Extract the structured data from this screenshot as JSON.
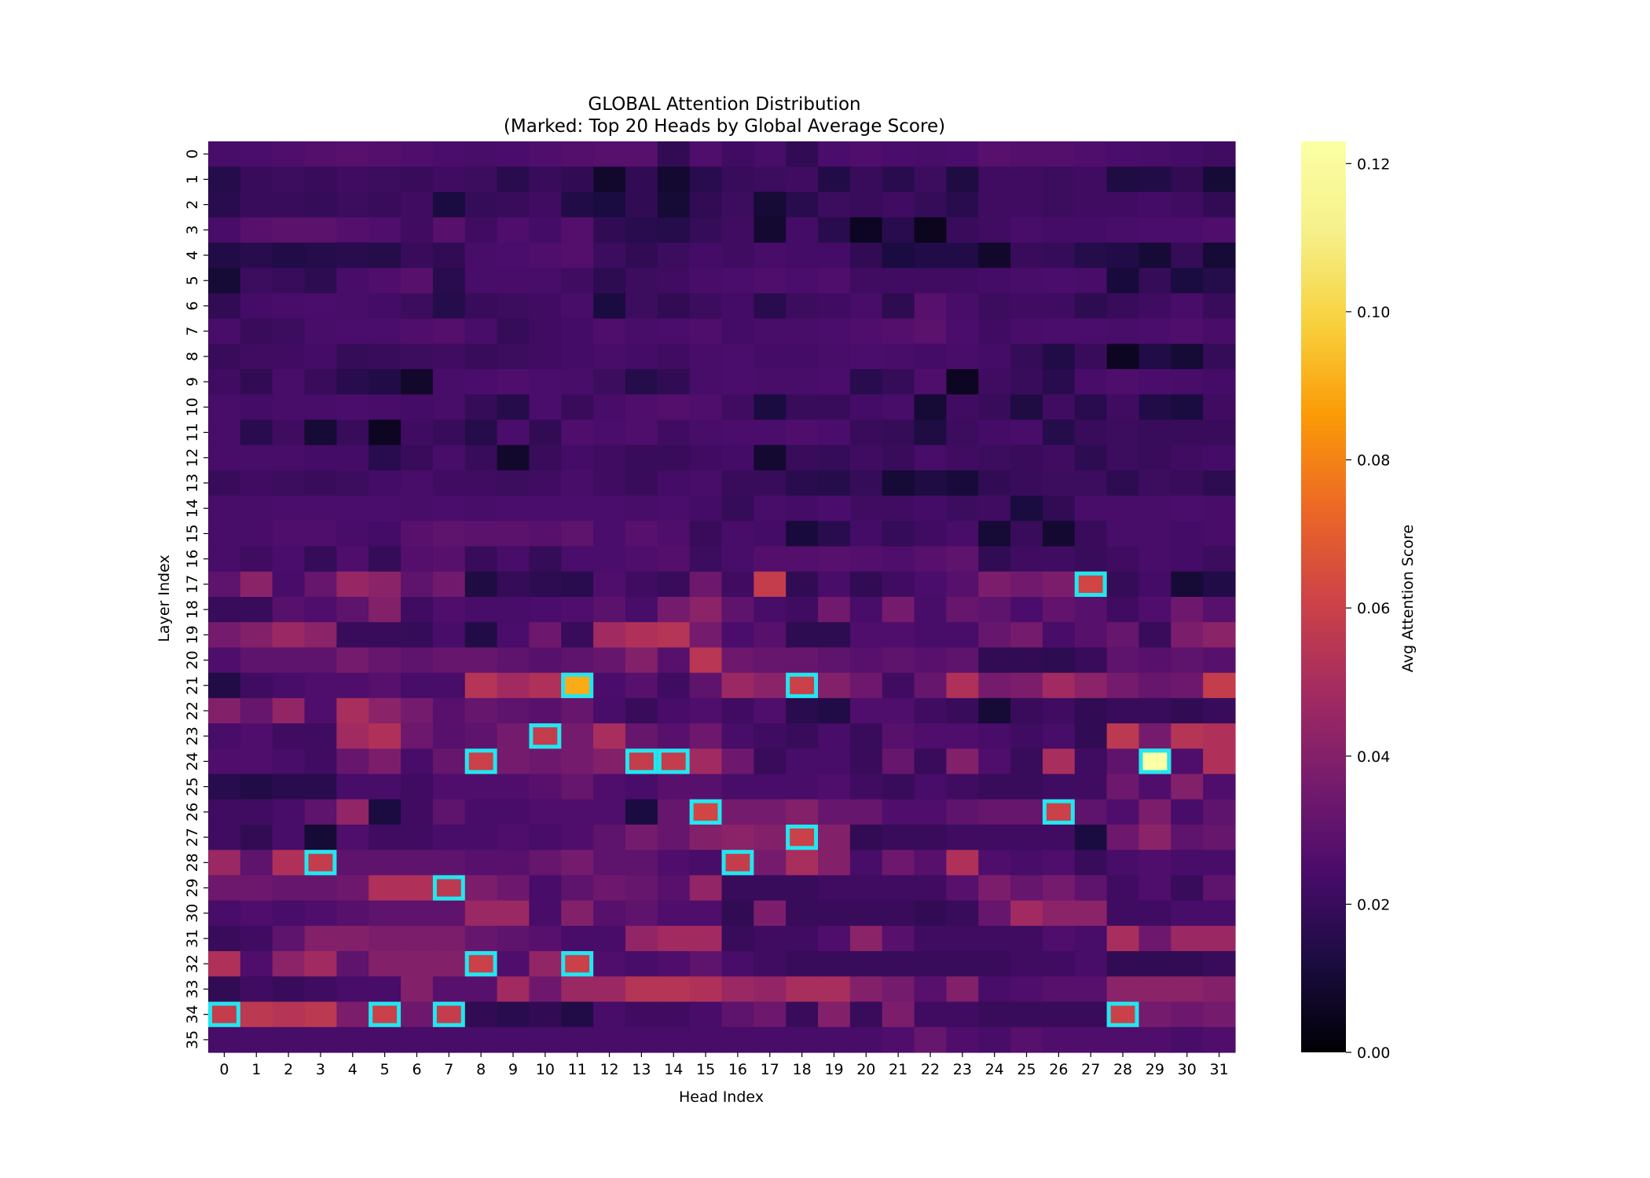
{
  "chart_data": {
    "type": "heatmap",
    "title_line1": "GLOBAL Attention Distribution",
    "title_line2": "(Marked: Top 20 Heads by Global Average Score)",
    "xlabel": "Head Index",
    "ylabel": "Layer Index",
    "colorbar_label": "Avg Attention Score",
    "colormap": "inferno",
    "vmin": 0.0,
    "vmax": 0.123,
    "colorbar_ticks": [
      "0.00",
      "0.02",
      "0.04",
      "0.06",
      "0.08",
      "0.10",
      "0.12"
    ],
    "x_ticks": [
      "0",
      "1",
      "2",
      "3",
      "4",
      "5",
      "6",
      "7",
      "8",
      "9",
      "10",
      "11",
      "12",
      "13",
      "14",
      "15",
      "16",
      "17",
      "18",
      "19",
      "20",
      "21",
      "22",
      "23",
      "24",
      "25",
      "26",
      "27",
      "28",
      "29",
      "30",
      "31"
    ],
    "y_ticks": [
      "0",
      "1",
      "2",
      "3",
      "4",
      "5",
      "6",
      "7",
      "8",
      "9",
      "10",
      "11",
      "12",
      "13",
      "14",
      "15",
      "16",
      "17",
      "18",
      "19",
      "20",
      "21",
      "22",
      "23",
      "24",
      "25",
      "26",
      "27",
      "28",
      "29",
      "30",
      "31",
      "32",
      "33",
      "34",
      "35"
    ],
    "marker_color": "#22e6f0",
    "values": [
      [
        0.024,
        0.025,
        0.026,
        0.027,
        0.028,
        0.027,
        0.026,
        0.025,
        0.024,
        0.025,
        0.026,
        0.027,
        0.028,
        0.028,
        0.018,
        0.026,
        0.022,
        0.024,
        0.018,
        0.025,
        0.026,
        0.025,
        0.024,
        0.025,
        0.028,
        0.027,
        0.027,
        0.026,
        0.025,
        0.024,
        0.023,
        0.022
      ],
      [
        0.015,
        0.02,
        0.021,
        0.02,
        0.022,
        0.021,
        0.02,
        0.022,
        0.021,
        0.016,
        0.02,
        0.018,
        0.008,
        0.018,
        0.009,
        0.016,
        0.02,
        0.021,
        0.022,
        0.014,
        0.02,
        0.016,
        0.021,
        0.013,
        0.022,
        0.022,
        0.021,
        0.022,
        0.013,
        0.014,
        0.018,
        0.01
      ],
      [
        0.016,
        0.02,
        0.02,
        0.019,
        0.021,
        0.02,
        0.022,
        0.012,
        0.019,
        0.02,
        0.022,
        0.014,
        0.012,
        0.018,
        0.01,
        0.018,
        0.021,
        0.01,
        0.016,
        0.021,
        0.02,
        0.022,
        0.019,
        0.016,
        0.022,
        0.022,
        0.021,
        0.022,
        0.022,
        0.023,
        0.022,
        0.018
      ],
      [
        0.024,
        0.028,
        0.029,
        0.029,
        0.027,
        0.026,
        0.022,
        0.028,
        0.022,
        0.026,
        0.023,
        0.027,
        0.018,
        0.016,
        0.015,
        0.019,
        0.022,
        0.009,
        0.023,
        0.016,
        0.006,
        0.016,
        0.005,
        0.02,
        0.022,
        0.024,
        0.023,
        0.023,
        0.024,
        0.025,
        0.025,
        0.026
      ],
      [
        0.014,
        0.016,
        0.014,
        0.015,
        0.016,
        0.015,
        0.02,
        0.018,
        0.024,
        0.025,
        0.026,
        0.027,
        0.021,
        0.018,
        0.021,
        0.023,
        0.022,
        0.024,
        0.023,
        0.023,
        0.018,
        0.012,
        0.014,
        0.014,
        0.008,
        0.02,
        0.019,
        0.015,
        0.014,
        0.01,
        0.019,
        0.01
      ],
      [
        0.01,
        0.021,
        0.02,
        0.017,
        0.024,
        0.026,
        0.028,
        0.016,
        0.024,
        0.024,
        0.024,
        0.022,
        0.017,
        0.021,
        0.022,
        0.024,
        0.025,
        0.026,
        0.025,
        0.026,
        0.022,
        0.022,
        0.022,
        0.022,
        0.023,
        0.024,
        0.025,
        0.024,
        0.011,
        0.019,
        0.012,
        0.015
      ],
      [
        0.018,
        0.023,
        0.024,
        0.025,
        0.024,
        0.023,
        0.021,
        0.015,
        0.02,
        0.021,
        0.022,
        0.024,
        0.012,
        0.021,
        0.018,
        0.021,
        0.023,
        0.016,
        0.021,
        0.022,
        0.024,
        0.017,
        0.028,
        0.024,
        0.021,
        0.022,
        0.022,
        0.017,
        0.02,
        0.022,
        0.024,
        0.02
      ],
      [
        0.024,
        0.02,
        0.021,
        0.024,
        0.025,
        0.025,
        0.026,
        0.027,
        0.024,
        0.019,
        0.022,
        0.023,
        0.026,
        0.024,
        0.025,
        0.026,
        0.023,
        0.024,
        0.024,
        0.025,
        0.026,
        0.027,
        0.029,
        0.025,
        0.022,
        0.024,
        0.025,
        0.025,
        0.024,
        0.025,
        0.026,
        0.024
      ],
      [
        0.02,
        0.022,
        0.022,
        0.023,
        0.019,
        0.02,
        0.021,
        0.022,
        0.02,
        0.021,
        0.022,
        0.023,
        0.024,
        0.023,
        0.022,
        0.024,
        0.025,
        0.023,
        0.023,
        0.024,
        0.025,
        0.024,
        0.023,
        0.024,
        0.023,
        0.019,
        0.014,
        0.02,
        0.006,
        0.014,
        0.01,
        0.019
      ],
      [
        0.022,
        0.018,
        0.024,
        0.02,
        0.016,
        0.014,
        0.008,
        0.024,
        0.025,
        0.026,
        0.025,
        0.024,
        0.021,
        0.015,
        0.018,
        0.024,
        0.025,
        0.024,
        0.024,
        0.025,
        0.016,
        0.019,
        0.026,
        0.006,
        0.022,
        0.02,
        0.016,
        0.024,
        0.026,
        0.025,
        0.024,
        0.023
      ],
      [
        0.024,
        0.023,
        0.024,
        0.024,
        0.025,
        0.024,
        0.023,
        0.024,
        0.019,
        0.015,
        0.025,
        0.02,
        0.024,
        0.026,
        0.027,
        0.026,
        0.022,
        0.012,
        0.02,
        0.02,
        0.023,
        0.024,
        0.01,
        0.022,
        0.02,
        0.013,
        0.022,
        0.016,
        0.022,
        0.014,
        0.012,
        0.022
      ],
      [
        0.024,
        0.016,
        0.022,
        0.01,
        0.02,
        0.006,
        0.022,
        0.02,
        0.015,
        0.025,
        0.018,
        0.026,
        0.025,
        0.026,
        0.022,
        0.024,
        0.025,
        0.025,
        0.026,
        0.025,
        0.02,
        0.019,
        0.013,
        0.021,
        0.023,
        0.024,
        0.015,
        0.02,
        0.021,
        0.02,
        0.02,
        0.02
      ],
      [
        0.024,
        0.024,
        0.024,
        0.023,
        0.023,
        0.016,
        0.02,
        0.024,
        0.02,
        0.008,
        0.02,
        0.023,
        0.022,
        0.02,
        0.02,
        0.022,
        0.023,
        0.009,
        0.02,
        0.019,
        0.022,
        0.02,
        0.024,
        0.022,
        0.021,
        0.02,
        0.022,
        0.017,
        0.021,
        0.02,
        0.022,
        0.023
      ],
      [
        0.02,
        0.022,
        0.021,
        0.02,
        0.021,
        0.023,
        0.024,
        0.022,
        0.022,
        0.021,
        0.022,
        0.024,
        0.022,
        0.02,
        0.023,
        0.024,
        0.02,
        0.02,
        0.016,
        0.015,
        0.019,
        0.01,
        0.013,
        0.011,
        0.018,
        0.02,
        0.021,
        0.021,
        0.017,
        0.021,
        0.02,
        0.017
      ],
      [
        0.024,
        0.024,
        0.025,
        0.025,
        0.025,
        0.025,
        0.024,
        0.025,
        0.024,
        0.025,
        0.025,
        0.025,
        0.025,
        0.024,
        0.025,
        0.023,
        0.019,
        0.024,
        0.023,
        0.025,
        0.022,
        0.022,
        0.023,
        0.021,
        0.022,
        0.012,
        0.018,
        0.024,
        0.024,
        0.024,
        0.025,
        0.024
      ],
      [
        0.024,
        0.024,
        0.026,
        0.026,
        0.024,
        0.023,
        0.028,
        0.03,
        0.029,
        0.029,
        0.028,
        0.03,
        0.025,
        0.028,
        0.026,
        0.02,
        0.024,
        0.023,
        0.011,
        0.016,
        0.023,
        0.019,
        0.022,
        0.024,
        0.01,
        0.02,
        0.009,
        0.02,
        0.024,
        0.024,
        0.023,
        0.024
      ],
      [
        0.024,
        0.022,
        0.025,
        0.019,
        0.026,
        0.019,
        0.027,
        0.028,
        0.02,
        0.024,
        0.019,
        0.025,
        0.025,
        0.026,
        0.027,
        0.021,
        0.024,
        0.027,
        0.027,
        0.028,
        0.027,
        0.026,
        0.028,
        0.03,
        0.018,
        0.022,
        0.022,
        0.02,
        0.022,
        0.024,
        0.023,
        0.021
      ],
      [
        0.03,
        0.042,
        0.024,
        0.032,
        0.045,
        0.042,
        0.03,
        0.035,
        0.013,
        0.019,
        0.017,
        0.016,
        0.026,
        0.022,
        0.02,
        0.034,
        0.022,
        0.058,
        0.018,
        0.024,
        0.018,
        0.022,
        0.025,
        0.028,
        0.038,
        0.035,
        0.038,
        0.062,
        0.019,
        0.023,
        0.01,
        0.014
      ],
      [
        0.02,
        0.02,
        0.028,
        0.026,
        0.03,
        0.04,
        0.022,
        0.026,
        0.024,
        0.024,
        0.025,
        0.026,
        0.029,
        0.024,
        0.036,
        0.042,
        0.03,
        0.024,
        0.022,
        0.035,
        0.024,
        0.036,
        0.024,
        0.032,
        0.03,
        0.025,
        0.031,
        0.028,
        0.022,
        0.026,
        0.034,
        0.028
      ],
      [
        0.036,
        0.04,
        0.046,
        0.042,
        0.02,
        0.02,
        0.019,
        0.024,
        0.014,
        0.025,
        0.034,
        0.02,
        0.048,
        0.052,
        0.054,
        0.036,
        0.025,
        0.028,
        0.017,
        0.017,
        0.026,
        0.026,
        0.024,
        0.024,
        0.032,
        0.036,
        0.024,
        0.028,
        0.032,
        0.02,
        0.038,
        0.042
      ],
      [
        0.026,
        0.03,
        0.03,
        0.03,
        0.036,
        0.032,
        0.03,
        0.032,
        0.032,
        0.03,
        0.028,
        0.03,
        0.032,
        0.04,
        0.028,
        0.055,
        0.034,
        0.032,
        0.032,
        0.03,
        0.028,
        0.03,
        0.028,
        0.03,
        0.018,
        0.018,
        0.017,
        0.02,
        0.03,
        0.028,
        0.03,
        0.028
      ],
      [
        0.014,
        0.022,
        0.024,
        0.026,
        0.026,
        0.028,
        0.024,
        0.024,
        0.054,
        0.048,
        0.052,
        0.09,
        0.025,
        0.028,
        0.022,
        0.03,
        0.046,
        0.042,
        0.06,
        0.04,
        0.034,
        0.022,
        0.032,
        0.052,
        0.036,
        0.038,
        0.048,
        0.042,
        0.036,
        0.032,
        0.034,
        0.058
      ],
      [
        0.04,
        0.032,
        0.044,
        0.026,
        0.05,
        0.042,
        0.036,
        0.028,
        0.032,
        0.03,
        0.028,
        0.032,
        0.024,
        0.02,
        0.024,
        0.026,
        0.022,
        0.026,
        0.016,
        0.014,
        0.026,
        0.026,
        0.022,
        0.02,
        0.01,
        0.02,
        0.022,
        0.018,
        0.02,
        0.02,
        0.018,
        0.02
      ],
      [
        0.024,
        0.026,
        0.022,
        0.022,
        0.048,
        0.052,
        0.034,
        0.028,
        0.03,
        0.036,
        0.058,
        0.036,
        0.05,
        0.032,
        0.028,
        0.034,
        0.024,
        0.022,
        0.02,
        0.024,
        0.02,
        0.028,
        0.026,
        0.026,
        0.024,
        0.022,
        0.024,
        0.018,
        0.056,
        0.036,
        0.054,
        0.052
      ],
      [
        0.026,
        0.026,
        0.024,
        0.022,
        0.032,
        0.038,
        0.024,
        0.032,
        0.06,
        0.036,
        0.034,
        0.036,
        0.04,
        0.058,
        0.058,
        0.048,
        0.034,
        0.02,
        0.024,
        0.024,
        0.02,
        0.032,
        0.02,
        0.04,
        0.026,
        0.02,
        0.05,
        0.022,
        0.03,
        0.123,
        0.026,
        0.052
      ],
      [
        0.016,
        0.014,
        0.016,
        0.016,
        0.024,
        0.024,
        0.022,
        0.026,
        0.026,
        0.026,
        0.028,
        0.032,
        0.026,
        0.024,
        0.028,
        0.028,
        0.024,
        0.024,
        0.024,
        0.026,
        0.022,
        0.02,
        0.024,
        0.022,
        0.02,
        0.02,
        0.022,
        0.022,
        0.034,
        0.026,
        0.04,
        0.026
      ],
      [
        0.022,
        0.022,
        0.024,
        0.03,
        0.044,
        0.012,
        0.022,
        0.03,
        0.024,
        0.024,
        0.026,
        0.026,
        0.026,
        0.012,
        0.032,
        0.062,
        0.036,
        0.036,
        0.04,
        0.032,
        0.032,
        0.026,
        0.026,
        0.03,
        0.032,
        0.032,
        0.06,
        0.03,
        0.026,
        0.038,
        0.024,
        0.03
      ],
      [
        0.022,
        0.018,
        0.024,
        0.01,
        0.026,
        0.022,
        0.022,
        0.024,
        0.024,
        0.026,
        0.024,
        0.026,
        0.03,
        0.036,
        0.032,
        0.04,
        0.042,
        0.04,
        0.06,
        0.04,
        0.018,
        0.02,
        0.02,
        0.022,
        0.022,
        0.022,
        0.022,
        0.012,
        0.034,
        0.042,
        0.03,
        0.032
      ],
      [
        0.046,
        0.03,
        0.052,
        0.058,
        0.03,
        0.03,
        0.03,
        0.03,
        0.028,
        0.028,
        0.032,
        0.036,
        0.03,
        0.03,
        0.026,
        0.024,
        0.058,
        0.036,
        0.05,
        0.04,
        0.024,
        0.034,
        0.028,
        0.052,
        0.026,
        0.024,
        0.026,
        0.02,
        0.024,
        0.026,
        0.024,
        0.024
      ],
      [
        0.034,
        0.034,
        0.032,
        0.032,
        0.034,
        0.052,
        0.052,
        0.056,
        0.038,
        0.034,
        0.024,
        0.03,
        0.034,
        0.032,
        0.028,
        0.044,
        0.02,
        0.02,
        0.02,
        0.022,
        0.022,
        0.022,
        0.022,
        0.028,
        0.038,
        0.032,
        0.036,
        0.03,
        0.022,
        0.026,
        0.02,
        0.03
      ],
      [
        0.024,
        0.026,
        0.024,
        0.026,
        0.028,
        0.03,
        0.03,
        0.03,
        0.046,
        0.046,
        0.024,
        0.04,
        0.028,
        0.03,
        0.026,
        0.026,
        0.018,
        0.038,
        0.02,
        0.02,
        0.02,
        0.02,
        0.018,
        0.02,
        0.032,
        0.048,
        0.042,
        0.042,
        0.022,
        0.022,
        0.024,
        0.024
      ],
      [
        0.02,
        0.022,
        0.03,
        0.04,
        0.04,
        0.038,
        0.038,
        0.038,
        0.032,
        0.03,
        0.028,
        0.024,
        0.024,
        0.044,
        0.048,
        0.048,
        0.02,
        0.022,
        0.022,
        0.026,
        0.042,
        0.028,
        0.022,
        0.022,
        0.022,
        0.022,
        0.026,
        0.024,
        0.05,
        0.034,
        0.046,
        0.046
      ],
      [
        0.052,
        0.026,
        0.042,
        0.048,
        0.03,
        0.04,
        0.04,
        0.04,
        0.06,
        0.026,
        0.044,
        0.06,
        0.026,
        0.024,
        0.026,
        0.03,
        0.024,
        0.022,
        0.02,
        0.02,
        0.02,
        0.02,
        0.02,
        0.02,
        0.02,
        0.022,
        0.022,
        0.024,
        0.018,
        0.018,
        0.018,
        0.02
      ],
      [
        0.018,
        0.022,
        0.02,
        0.022,
        0.024,
        0.024,
        0.04,
        0.028,
        0.028,
        0.048,
        0.034,
        0.046,
        0.046,
        0.054,
        0.054,
        0.052,
        0.046,
        0.044,
        0.05,
        0.05,
        0.04,
        0.036,
        0.028,
        0.04,
        0.024,
        0.026,
        0.028,
        0.028,
        0.042,
        0.042,
        0.042,
        0.04
      ],
      [
        0.058,
        0.056,
        0.054,
        0.056,
        0.038,
        0.06,
        0.034,
        0.058,
        0.018,
        0.016,
        0.018,
        0.014,
        0.024,
        0.022,
        0.022,
        0.024,
        0.03,
        0.034,
        0.02,
        0.04,
        0.02,
        0.038,
        0.022,
        0.022,
        0.02,
        0.02,
        0.02,
        0.02,
        0.06,
        0.036,
        0.034,
        0.036
      ],
      [
        0.024,
        0.024,
        0.024,
        0.024,
        0.024,
        0.024,
        0.024,
        0.024,
        0.024,
        0.024,
        0.024,
        0.024,
        0.024,
        0.024,
        0.024,
        0.024,
        0.024,
        0.024,
        0.024,
        0.024,
        0.024,
        0.026,
        0.032,
        0.026,
        0.024,
        0.028,
        0.026,
        0.026,
        0.026,
        0.026,
        0.024,
        0.026
      ]
    ],
    "marked_heads": [
      [
        17,
        27
      ],
      [
        21,
        11
      ],
      [
        21,
        18
      ],
      [
        23,
        10
      ],
      [
        24,
        8
      ],
      [
        24,
        13
      ],
      [
        24,
        14
      ],
      [
        24,
        29
      ],
      [
        26,
        15
      ],
      [
        26,
        26
      ],
      [
        27,
        18
      ],
      [
        28,
        3
      ],
      [
        28,
        16
      ],
      [
        29,
        7
      ],
      [
        32,
        8
      ],
      [
        32,
        11
      ],
      [
        34,
        0
      ],
      [
        34,
        5
      ],
      [
        34,
        7
      ],
      [
        34,
        28
      ]
    ]
  }
}
